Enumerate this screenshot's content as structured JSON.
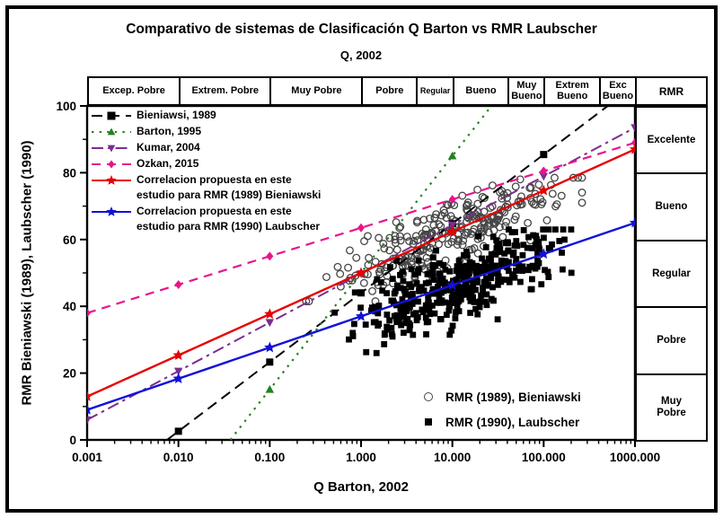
{
  "title": "Comparativo de sistemas de Clasificación Q Barton vs RMR Laubscher",
  "q_scale_header": "Q, 2002",
  "x_axis": {
    "label": "Q Barton, 2002",
    "scale": "log",
    "tick_labels": [
      "0.001",
      "0.010",
      "0.100",
      "1.000",
      "10.000",
      "100.000",
      "1000.000"
    ],
    "tick_values": [
      0.001,
      0.01,
      0.1,
      1,
      10,
      100,
      1000
    ],
    "range": [
      0.001,
      1000
    ]
  },
  "y_axis": {
    "label": "RMR Bieniawski (1989), Laubscher (1990)",
    "tick_labels": [
      "0",
      "20",
      "40",
      "60",
      "80",
      "100"
    ],
    "tick_values": [
      0,
      20,
      40,
      60,
      80,
      100
    ],
    "range": [
      0,
      100
    ]
  },
  "q_classification": {
    "boxes": [
      {
        "label": "Excep. Pobre",
        "q_from": 0.001,
        "q_to": 0.01
      },
      {
        "label": "Extrem. Pobre",
        "q_from": 0.01,
        "q_to": 0.1
      },
      {
        "label": "Muy Pobre",
        "q_from": 0.1,
        "q_to": 1
      },
      {
        "label": "Pobre",
        "q_from": 1,
        "q_to": 4
      },
      {
        "label": "Regular",
        "q_from": 4,
        "q_to": 10,
        "small": true
      },
      {
        "label": "Bueno",
        "q_from": 10,
        "q_to": 40
      },
      {
        "label": "Muy\nBueno",
        "q_from": 40,
        "q_to": 100
      },
      {
        "label": "Extrem\nBueno",
        "q_from": 100,
        "q_to": 400
      },
      {
        "label": "Exc\nBueno",
        "q_from": 400,
        "q_to": 1000
      }
    ]
  },
  "rmr_classification": {
    "header": "RMR",
    "bands": [
      {
        "label": "Excelente",
        "rmr_from": 80,
        "rmr_to": 100
      },
      {
        "label": "Bueno",
        "rmr_from": 60,
        "rmr_to": 80
      },
      {
        "label": "Regular",
        "rmr_from": 40,
        "rmr_to": 60
      },
      {
        "label": "Pobre",
        "rmr_from": 20,
        "rmr_to": 40
      },
      {
        "label": "Muy\nPobre",
        "rmr_from": 0,
        "rmr_to": 20
      }
    ]
  },
  "chart_data": {
    "type": "scatter",
    "x_scale": "log",
    "xlabel": "Q Barton, 2002",
    "ylabel": "RMR Bieniawski (1989), Laubscher (1990)",
    "xlim": [
      0.001,
      1000
    ],
    "ylim": [
      0,
      100
    ],
    "grid": false,
    "legend_position": "top-left inside plot",
    "lines": [
      {
        "id": "bieniawski-1989",
        "legend_label": "Bieniawsi, 1989",
        "color": "#000000",
        "dash": "12,7",
        "width": 2,
        "marker": "square",
        "marker_size": 4,
        "endpoints_q_rmr": [
          [
            0.0075,
            0
          ],
          [
            504,
            100
          ]
        ],
        "markers_q": [
          0.01,
          0.1,
          1,
          10,
          100
        ]
      },
      {
        "id": "barton-1995",
        "legend_label": "Barton, 1995",
        "color": "#23821f",
        "dash": "2.4,6.2",
        "width": 2.2,
        "marker": "triangle-up",
        "marker_size": 5,
        "endpoints_q_rmr": [
          [
            0.037,
            0
          ],
          [
            26.8,
            100
          ]
        ],
        "markers_q": [
          0.1,
          1,
          10
        ]
      },
      {
        "id": "kumar-2004",
        "legend_label": "Kumar, 2004",
        "color": "#7b2d8e",
        "dash": "13,5,3.5,5",
        "width": 2,
        "marker": "triangle-down",
        "marker_size": 5,
        "endpoints_q_rmr": [
          [
            0.001,
            6
          ],
          [
            1000,
            93.5
          ]
        ],
        "markers_q": [
          0.001,
          0.01,
          0.1,
          1,
          10,
          100,
          1000
        ]
      },
      {
        "id": "ozkan-2015",
        "legend_label": "Ozkan, 2015",
        "color": "#e8148c",
        "dash": "10,7",
        "width": 2.2,
        "marker": "diamond",
        "marker_size": 5,
        "endpoints_q_rmr": [
          [
            0.001,
            38
          ],
          [
            1000,
            89
          ]
        ],
        "markers_q": [
          0.001,
          0.01,
          0.1,
          1,
          10,
          100,
          1000
        ]
      },
      {
        "id": "propuesta-rmr1989",
        "legend_label": "Correlacion propuesta en este\nestudio para RMR (1989) Bieniawski",
        "color": "#e60000",
        "dash": "",
        "width": 2.4,
        "marker": "star",
        "marker_size": 6.5,
        "endpoints_q_rmr": [
          [
            0.001,
            13
          ],
          [
            1000,
            87
          ]
        ],
        "markers_q": [
          0.001,
          0.01,
          0.1,
          1,
          10,
          100,
          1000
        ]
      },
      {
        "id": "propuesta-rmr1990",
        "legend_label": "Correlacion propuesta en este\nestudio para RMR (1990) Laubscher",
        "color": "#1111d8",
        "dash": "",
        "width": 2.4,
        "marker": "star",
        "marker_size": 6.5,
        "endpoints_q_rmr": [
          [
            0.001,
            9
          ],
          [
            1000,
            65
          ]
        ],
        "markers_q": [
          0.001,
          0.01,
          0.1,
          1,
          10,
          100,
          1000
        ]
      }
    ],
    "scatter_series": [
      {
        "id": "rmr-1989-bieniawski",
        "label": "RMR (1989), Bieniawski",
        "marker": "circle-open",
        "stroke": "#454545",
        "count": 280,
        "approx_q_range": [
          0.15,
          250
        ],
        "approx_rmr_range": [
          42,
          78
        ],
        "trend": {
          "base_rmr_at_q1": 50,
          "slope_per_decade": 11.5,
          "scatter_sd": 4.8
        },
        "gen": {
          "seed": 42,
          "logq_mean": 1.0,
          "logq_sd": 0.62,
          "logq_clip": [
            -0.82,
            2.42
          ],
          "rmr_clip": [
            41.5,
            78.5
          ]
        }
      },
      {
        "id": "rmr-1990-laubscher",
        "label": "RMR (1990), Laubscher",
        "marker": "square-filled",
        "fill": "#000000",
        "count": 400,
        "approx_q_range": [
          0.12,
          250
        ],
        "approx_rmr_range": [
          27,
          63
        ],
        "trend": {
          "base_rmr_at_q1": 36.5,
          "slope_per_decade": 9.5,
          "scatter_sd": 5.2
        },
        "gen": {
          "seed": 7,
          "logq_mean": 1.05,
          "logq_sd": 0.56,
          "logq_clip": [
            -0.92,
            2.42
          ],
          "rmr_clip": [
            26,
            63
          ]
        }
      }
    ]
  }
}
